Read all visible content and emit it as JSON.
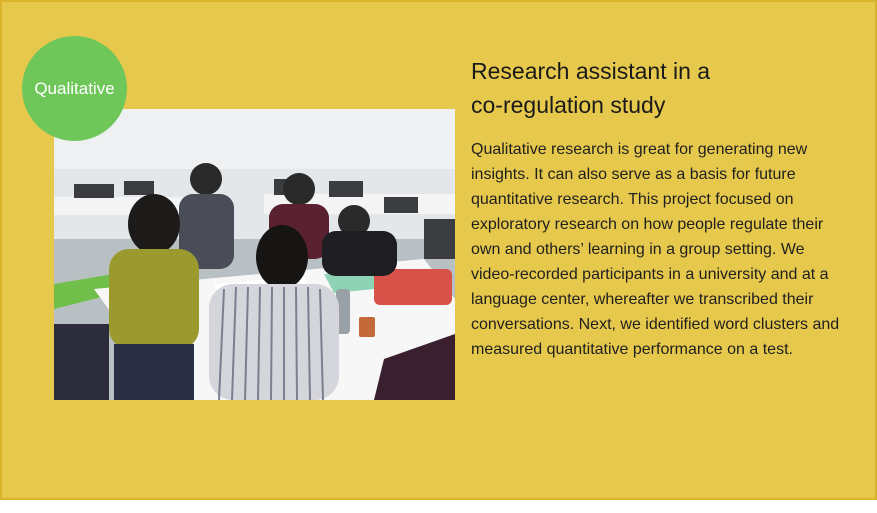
{
  "card": {
    "badge_label": "Qualitative",
    "title_line1": "Research assistant in a",
    "title_line2": "co-regulation study",
    "description": "Qualitative research is great for generating new insights. It can also serve as a basis for future quantitative research. This project focused on exploratory research on how people regulate their own and others’ learning in a group setting. We video-recorded participants in a university and at a language center, whereafter we transcribed their conversations. Next, we identified word clusters and measured quantitative performance on a test."
  },
  "colors": {
    "card_background": "#e6c84c",
    "badge_background": "#6fc75a"
  }
}
